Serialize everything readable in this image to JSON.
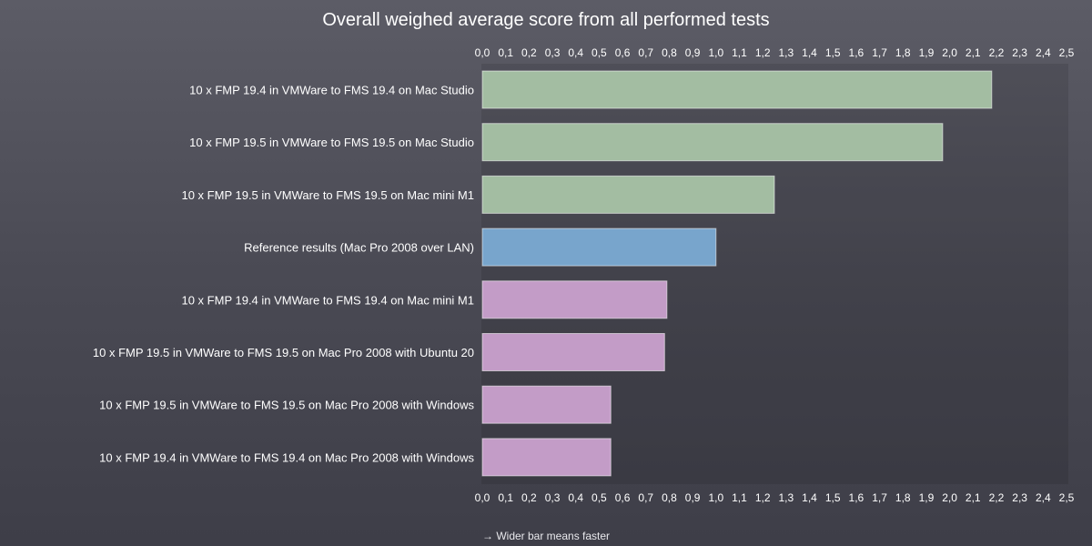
{
  "chart_data": {
    "type": "bar",
    "orientation": "horizontal",
    "title": "Overall weighed average score from all performed tests",
    "xlim": [
      0,
      2.5
    ],
    "tick_step": 0.1,
    "tick_labels": [
      "0,0",
      "0,1",
      "0,2",
      "0,3",
      "0,4",
      "0,5",
      "0,6",
      "0,7",
      "0,8",
      "0,9",
      "1,0",
      "1,1",
      "1,2",
      "1,3",
      "1,4",
      "1,5",
      "1,6",
      "1,7",
      "1,8",
      "1,9",
      "2,0",
      "2,1",
      "2,2",
      "2,3",
      "2,4",
      "2,5"
    ],
    "axis_position": "top-and-bottom",
    "grid": false,
    "categories": [
      "10 x FMP 19.4 in VMWare to FMS 19.4 on Mac Studio",
      "10 x FMP 19.5 in VMWare to FMS 19.5 on Mac Studio",
      "10 x FMP 19.5 in VMWare to FMS 19.5 on Mac mini M1",
      "Reference results (Mac Pro 2008 over LAN)",
      "10 x FMP 19.4 in VMWare to FMS 19.4 on Mac mini M1",
      "10 x FMP 19.5 in VMWare to FMS 19.5 on Mac Pro 2008 with Ubuntu 20",
      "10 x FMP 19.5 in VMWare to FMS 19.5 on Mac Pro 2008 with Windows",
      "10 x FMP 19.4 in VMWare to FMS 19.4 on Mac Pro 2008 with Windows"
    ],
    "values": [
      2.18,
      1.97,
      1.25,
      1.0,
      0.79,
      0.78,
      0.55,
      0.55
    ],
    "colors": [
      "#a3bda2",
      "#a3bda2",
      "#a3bda2",
      "#78a5cc",
      "#c39cc7",
      "#c39cc7",
      "#c39cc7",
      "#c39cc7"
    ]
  },
  "footnote": "→ Wider bar means faster"
}
